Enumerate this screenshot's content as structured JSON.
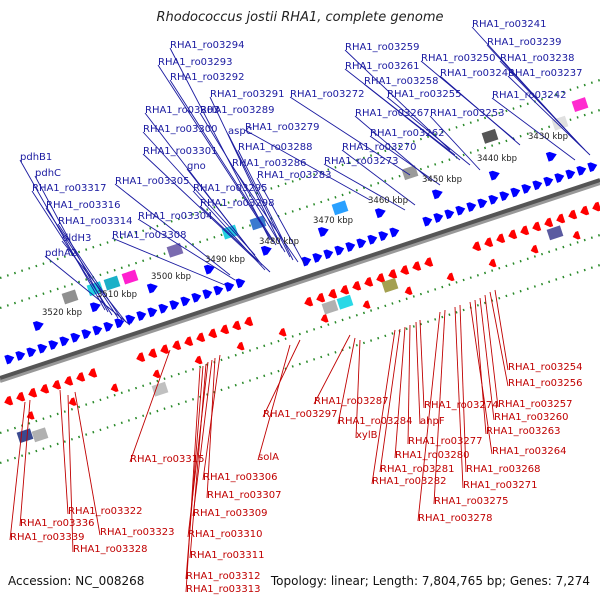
{
  "title": "Rhodococcus jostii RHA1, complete genome",
  "footer": {
    "accession": "Accession: NC_008268",
    "summary": "Topology: linear; Length: 7,804,765 bp; Genes: 7,274"
  },
  "colors": {
    "forward": "#0000ff",
    "reverse": "#ff0000",
    "forward_label": "#1a1aa0",
    "reverse_label": "#c00000",
    "axis": "#555555",
    "tick": "#2a8a2a"
  },
  "kbp_labels": [
    "3430 kbp",
    "3440 kbp",
    "3450 kbp",
    "3460 kbp",
    "3470 kbp",
    "3480 kbp",
    "3490 kbp",
    "3500 kbp",
    "3510 kbp",
    "3520 kbp"
  ],
  "forward_genes": [
    "RHA1_ro03241",
    "RHA1_ro03239",
    "RHA1_ro03238",
    "RHA1_ro03237",
    "RHA1_ro03242",
    "RHA1_ro03250",
    "RHA1_ro03248",
    "RHA1_ro03259",
    "RHA1_ro03261",
    "RHA1_ro03258",
    "RHA1_ro03255",
    "RHA1_ro03253",
    "RHA1_ro03272",
    "RHA1_ro03267",
    "RHA1_ro03262",
    "RHA1_ro03279",
    "RHA1_ro03270",
    "RHA1_ro03273",
    "RHA1_ro03294",
    "RHA1_ro03293",
    "RHA1_ro03292",
    "RHA1_ro03291",
    "RHA1_ro03303",
    "RHA1_ro03289",
    "RHA1_ro03300",
    "aspC",
    "RHA1_ro03288",
    "RHA1_ro03301",
    "gno",
    "RHA1_ro03286",
    "RHA1_ro03283",
    "RHA1_ro03305",
    "RHA1_ro03295",
    "RHA1_ro03298",
    "RHA1_ro03304",
    "RHA1_ro03308",
    "pdhB1",
    "pdhC",
    "RHA1_ro03317",
    "RHA1_ro03316",
    "RHA1_ro03314",
    "dldH3",
    "pdhA2"
  ],
  "reverse_genes": [
    "RHA1_ro03254",
    "RHA1_ro03256",
    "RHA1_ro03257",
    "RHA1_ro03260",
    "RHA1_ro03263",
    "RHA1_ro03264",
    "RHA1_ro03268",
    "RHA1_ro03271",
    "RHA1_ro03275",
    "RHA1_ro03278",
    "RHA1_ro03274",
    "ahpF",
    "RHA1_ro03277",
    "RHA1_ro03280",
    "RHA1_ro03281",
    "RHA1_ro03282",
    "RHA1_ro03287",
    "RHA1_ro03284",
    "xylB",
    "RHA1_ro03297",
    "solA",
    "RHA1_ro03315",
    "RHA1_ro03306",
    "RHA1_ro03307",
    "RHA1_ro03309",
    "RHA1_ro03310",
    "RHA1_ro03311",
    "RHA1_ro03312",
    "RHA1_ro03313",
    "RHA1_ro03322",
    "RHA1_ro03323",
    "RHA1_ro03328",
    "RHA1_ro03336",
    "RHA1_ro03339"
  ]
}
